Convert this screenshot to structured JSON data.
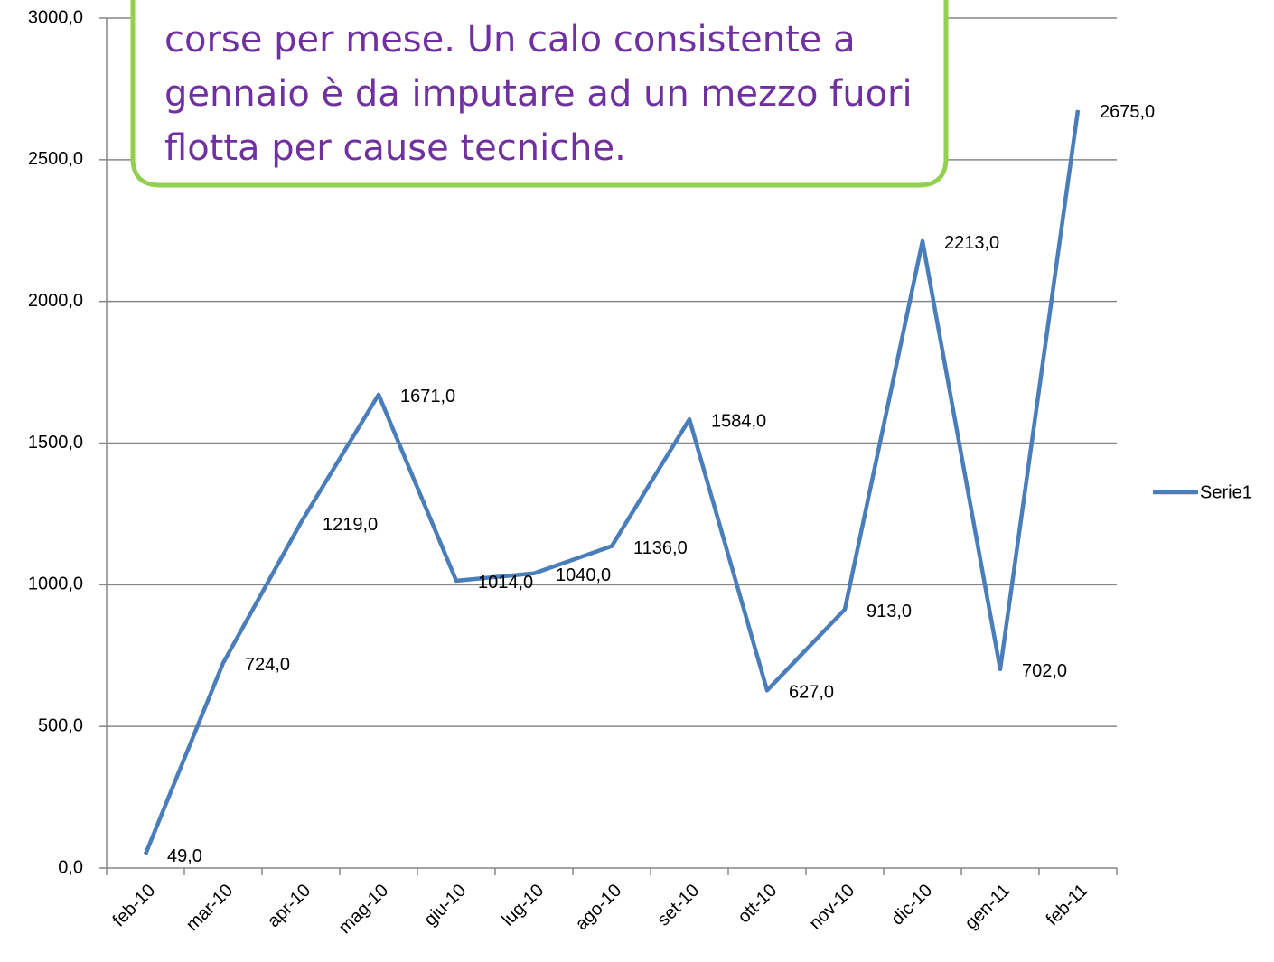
{
  "chart_data": {
    "type": "line",
    "annotation": [
      "corse per mese. Un calo consistente a",
      "gennaio è da imputare ad un mezzo fuori",
      "flotta per cause tecniche."
    ],
    "categories": [
      "feb-10",
      "mar-10",
      "apr-10",
      "mag-10",
      "giu-10",
      "lug-10",
      "ago-10",
      "set-10",
      "ott-10",
      "nov-10",
      "dic-10",
      "gen-11",
      "feb-11"
    ],
    "series": [
      {
        "name": "Serie1",
        "color": "#4a7ebb",
        "values": [
          49,
          724,
          1219,
          1671,
          1014,
          1040,
          1136,
          1584,
          627,
          913,
          2213,
          702,
          2675
        ],
        "value_labels": [
          "49,0",
          "724,0",
          "1219,0",
          "1671,0",
          "1014,0",
          "1040,0",
          "1136,0",
          "1584,0",
          "627,0",
          "913,0",
          "2213,0",
          "702,0",
          "2675,0"
        ]
      }
    ],
    "ylim": [
      0,
      3000
    ],
    "yticks": [
      {
        "value": 0,
        "label": "0,0"
      },
      {
        "value": 500,
        "label": "500,0"
      },
      {
        "value": 1000,
        "label": "1000,0"
      },
      {
        "value": 1500,
        "label": "1500,0"
      },
      {
        "value": 2000,
        "label": "2000,0"
      },
      {
        "value": 2500,
        "label": "2500,0"
      },
      {
        "value": 3000,
        "label": "3000,0"
      }
    ],
    "grid": true,
    "legend": "right"
  }
}
